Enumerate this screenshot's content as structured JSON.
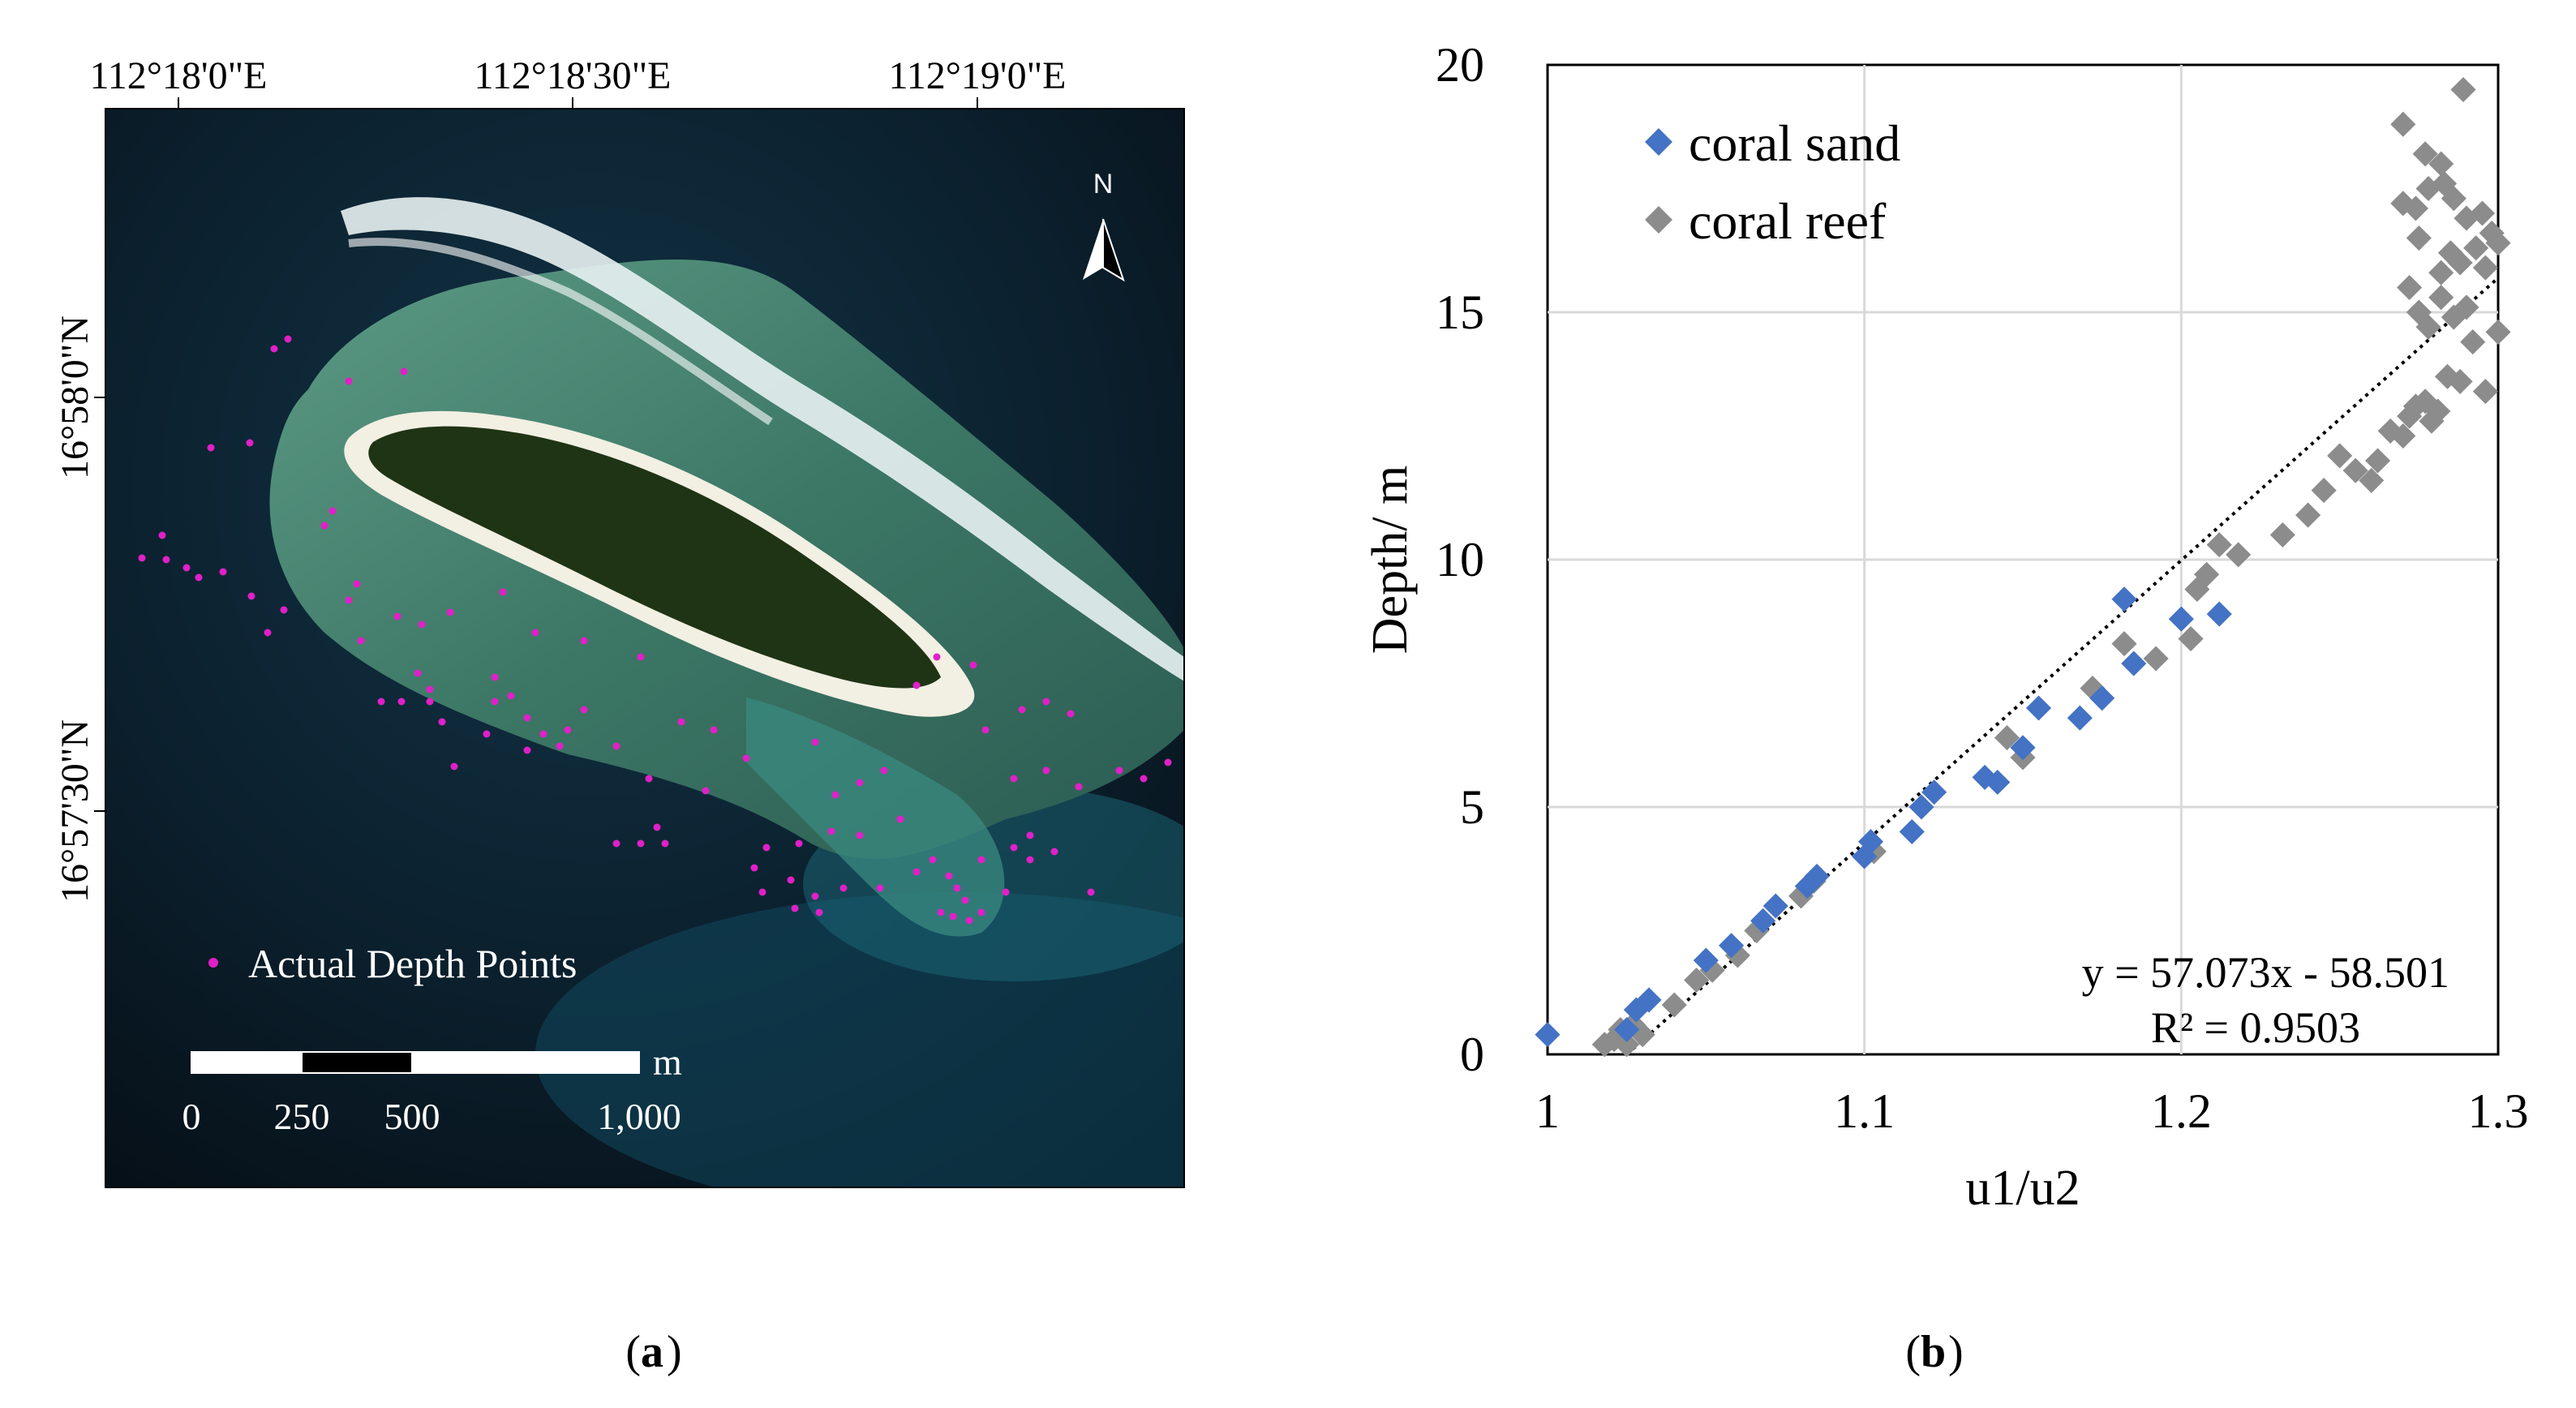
{
  "panel_a": {
    "label": "a",
    "lon_ticks": [
      "112°18'0\"E",
      "112°18'30\"E",
      "112°19'0\"E"
    ],
    "lat_ticks": [
      "16°58'0\"N",
      "16°57'30\"N"
    ],
    "north_label": "N",
    "legend_label": "Actual Depth Points",
    "scale_unit": "m",
    "scale_labels": [
      "0",
      "250",
      "500",
      "1,000"
    ],
    "colors": {
      "ocean": "#0b1a24",
      "reef": "#3f7f6c",
      "island": "#1d2f12",
      "sand": "#f1eee2",
      "point": "#e020c8"
    }
  },
  "panel_b": {
    "label": "b",
    "equation": "y = 57.073x - 58.501",
    "r_squared": "R² = 0.9503"
  },
  "chart_data": {
    "type": "scatter",
    "xlabel": "u1/u2",
    "ylabel": "Depth/ m",
    "xlim": [
      1,
      1.3
    ],
    "ylim": [
      0,
      20
    ],
    "xticks": [
      "1",
      "1.1",
      "1.2",
      "1.3"
    ],
    "yticks": [
      "0",
      "5",
      "10",
      "15",
      "20"
    ],
    "grid": true,
    "legend_position": "top-left",
    "trendline": {
      "slope": 57.073,
      "intercept": -58.501
    },
    "series": [
      {
        "name": "coral sand",
        "color": "#4472c4",
        "points": [
          [
            1.0,
            0.4
          ],
          [
            1.025,
            0.5
          ],
          [
            1.028,
            0.9
          ],
          [
            1.032,
            1.1
          ],
          [
            1.05,
            1.9
          ],
          [
            1.058,
            2.2
          ],
          [
            1.068,
            2.7
          ],
          [
            1.072,
            3.0
          ],
          [
            1.082,
            3.4
          ],
          [
            1.085,
            3.6
          ],
          [
            1.1,
            4.0
          ],
          [
            1.102,
            4.3
          ],
          [
            1.115,
            4.5
          ],
          [
            1.118,
            5.0
          ],
          [
            1.122,
            5.3
          ],
          [
            1.138,
            5.6
          ],
          [
            1.142,
            5.5
          ],
          [
            1.15,
            6.2
          ],
          [
            1.155,
            7.0
          ],
          [
            1.168,
            6.8
          ],
          [
            1.175,
            7.2
          ],
          [
            1.182,
            9.2
          ],
          [
            1.185,
            7.9
          ],
          [
            1.2,
            8.8
          ],
          [
            1.212,
            8.9
          ]
        ]
      },
      {
        "name": "coral reef",
        "color": "#8c8c8c",
        "points": [
          [
            1.018,
            0.2
          ],
          [
            1.021,
            0.3
          ],
          [
            1.023,
            0.5
          ],
          [
            1.025,
            0.2
          ],
          [
            1.027,
            0.6
          ],
          [
            1.03,
            0.4
          ],
          [
            1.04,
            1.0
          ],
          [
            1.047,
            1.5
          ],
          [
            1.052,
            1.7
          ],
          [
            1.06,
            2.0
          ],
          [
            1.066,
            2.5
          ],
          [
            1.08,
            3.2
          ],
          [
            1.084,
            3.5
          ],
          [
            1.103,
            4.1
          ],
          [
            1.145,
            6.4
          ],
          [
            1.15,
            6.0
          ],
          [
            1.172,
            7.4
          ],
          [
            1.182,
            8.3
          ],
          [
            1.192,
            8.0
          ],
          [
            1.203,
            8.4
          ],
          [
            1.205,
            9.4
          ],
          [
            1.208,
            9.7
          ],
          [
            1.212,
            10.3
          ],
          [
            1.218,
            10.1
          ],
          [
            1.232,
            10.5
          ],
          [
            1.24,
            10.9
          ],
          [
            1.245,
            11.4
          ],
          [
            1.25,
            12.1
          ],
          [
            1.255,
            11.8
          ],
          [
            1.26,
            11.6
          ],
          [
            1.262,
            12.0
          ],
          [
            1.266,
            12.6
          ],
          [
            1.27,
            12.5
          ],
          [
            1.272,
            12.9
          ],
          [
            1.274,
            13.1
          ],
          [
            1.277,
            13.2
          ],
          [
            1.279,
            12.8
          ],
          [
            1.281,
            13.0
          ],
          [
            1.284,
            13.7
          ],
          [
            1.288,
            13.6
          ],
          [
            1.292,
            14.4
          ],
          [
            1.296,
            13.4
          ],
          [
            1.3,
            14.6
          ],
          [
            1.272,
            15.5
          ],
          [
            1.275,
            15.0
          ],
          [
            1.278,
            14.7
          ],
          [
            1.282,
            15.8
          ],
          [
            1.285,
            16.2
          ],
          [
            1.288,
            16.0
          ],
          [
            1.29,
            15.1
          ],
          [
            1.293,
            16.3
          ],
          [
            1.296,
            15.9
          ],
          [
            1.298,
            16.6
          ],
          [
            1.3,
            16.4
          ],
          [
            1.27,
            17.2
          ],
          [
            1.274,
            17.1
          ],
          [
            1.278,
            17.5
          ],
          [
            1.282,
            18.0
          ],
          [
            1.286,
            17.3
          ],
          [
            1.29,
            16.9
          ],
          [
            1.295,
            17.0
          ],
          [
            1.27,
            18.8
          ],
          [
            1.277,
            18.2
          ],
          [
            1.283,
            17.6
          ],
          [
            1.289,
            19.5
          ],
          [
            1.275,
            16.5
          ],
          [
            1.286,
            14.9
          ],
          [
            1.282,
            15.3
          ]
        ]
      }
    ]
  }
}
